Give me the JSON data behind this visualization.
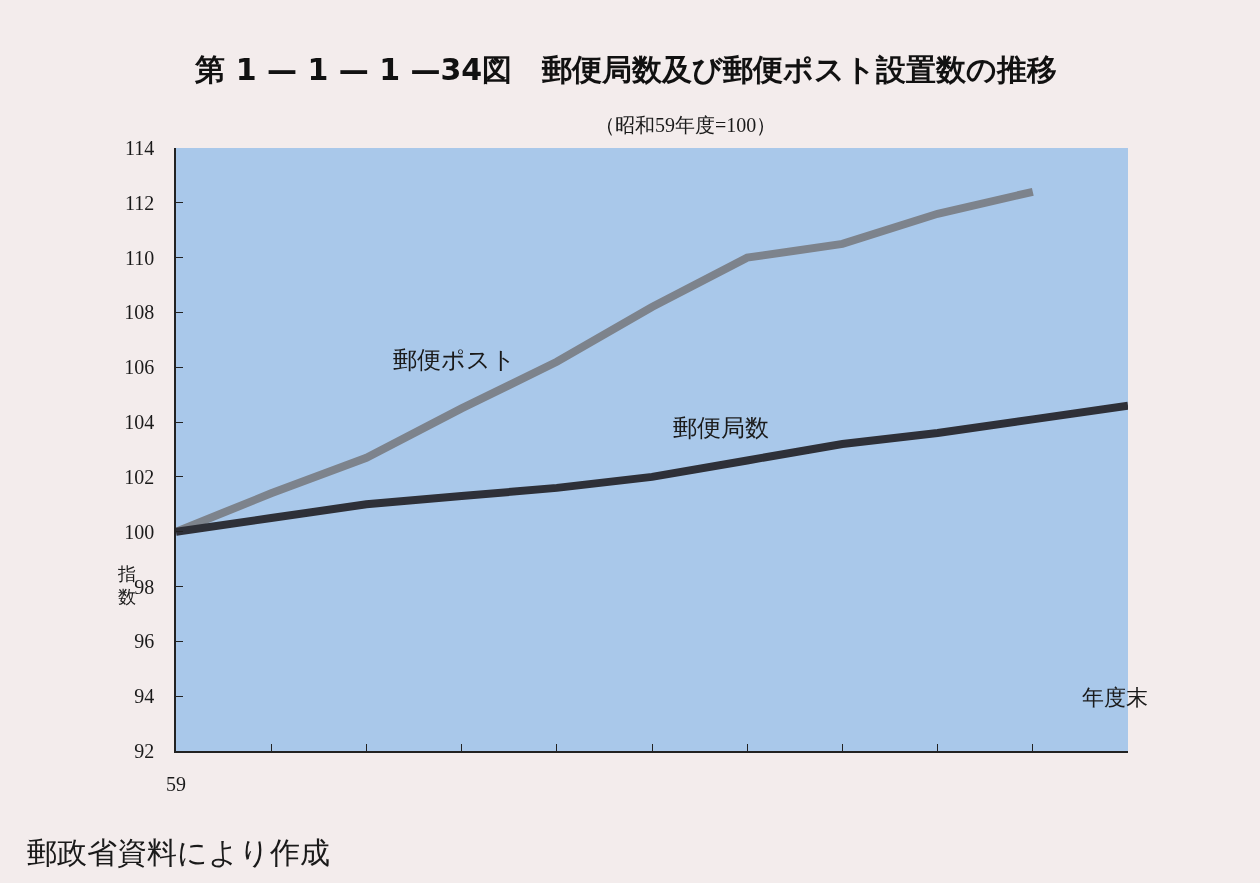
{
  "chart_data": {
    "type": "line",
    "title": "第 1 — 1 — 1 —34図　郵便局数及び郵便ポスト設置数の推移",
    "subtitle": "（昭和59年度=100）",
    "xlabel": "年度末",
    "ylabel": "指数",
    "annotations": [
      "郵政省資料により作成"
    ],
    "categories": [
      "59",
      null,
      null,
      null,
      null,
      null,
      null,
      null,
      null,
      null,
      null
    ],
    "series": [
      {
        "name": "郵便ポスト",
        "color": "#7d838c",
        "values": [
          100,
          101.4,
          102.7,
          104.5,
          106.2,
          108.2,
          110.0,
          110.5,
          111.6,
          112.4,
          null
        ]
      },
      {
        "name": "郵便局数",
        "color": "#2e3038",
        "values": [
          100,
          100.5,
          101.0,
          101.3,
          101.6,
          102.0,
          102.6,
          103.2,
          103.6,
          104.1,
          104.6
        ]
      }
    ],
    "ylim": [
      92,
      114
    ],
    "yticks": [
      92,
      94,
      96,
      98,
      100,
      102,
      104,
      106,
      108,
      110,
      112,
      114
    ],
    "grid": false,
    "marker": "none",
    "line_style": "solid"
  }
}
